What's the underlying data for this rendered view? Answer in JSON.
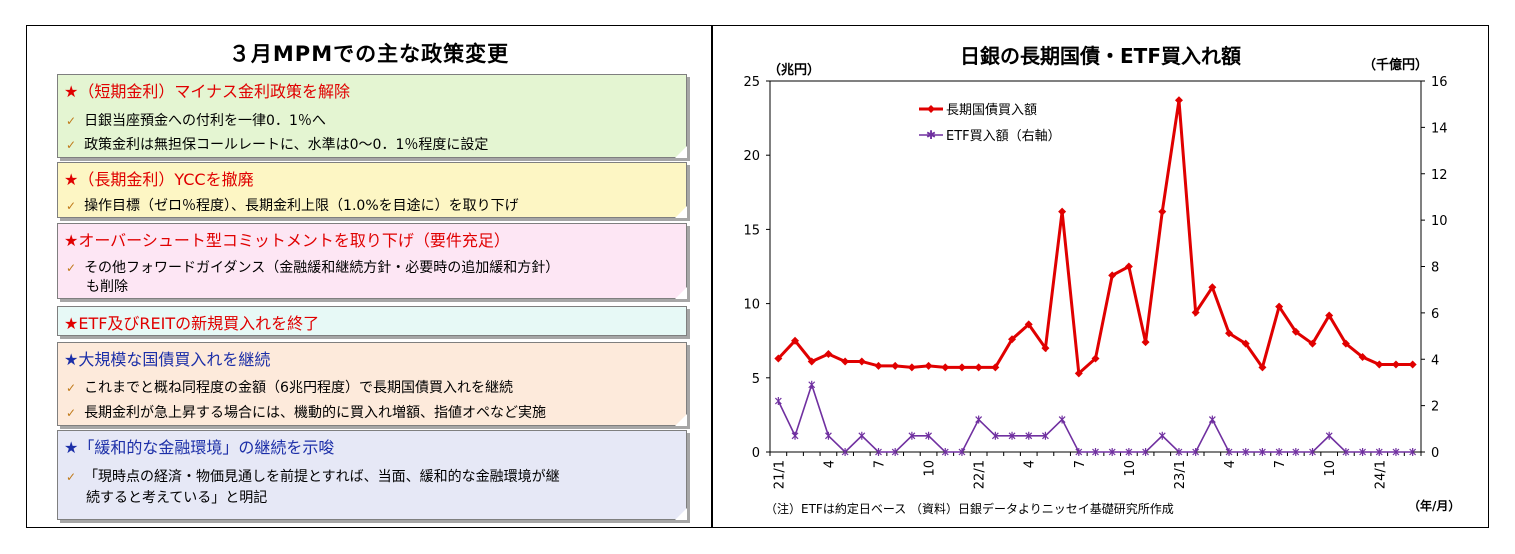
{
  "left": {
    "title": "３月MPMでの主な政策変更",
    "boxes": [
      {
        "heading": "★（短期金利）マイナス金利政策を解除",
        "items": [
          "日銀当座預金への付利を一律0．1％へ",
          "政策金利は無担保コールレートに、水準は0～0．1％程度に設定"
        ]
      },
      {
        "heading": "★（長期金利）YCCを撤廃",
        "items": [
          "操作目標（ゼロ％程度）、長期金利上限（1.0%を目途に）を取り下げ"
        ]
      },
      {
        "heading": "★オーバーシュート型コミットメントを取り下げ（要件充足）",
        "items": [
          "その他フォワードガイダンス（金融緩和継続方針・必要時の追加緩和方針）"
        ],
        "item_continuation": "も削除"
      },
      {
        "heading": "★ETF及びREITの新規買入れを終了",
        "items": []
      },
      {
        "heading": "★大規模な国債買入れを継続",
        "items": [
          "これまでと概ね同程度の金額（6兆円程度）で長期国債買入れを継続",
          "長期金利が急上昇する場合には、機動的に買入れ増額、指値オペなど実施"
        ]
      },
      {
        "heading": "★「緩和的な金融環境」の継続を示唆",
        "items": [
          "「現時点の経済・物価見通しを前提とすれば、当面、緩和的な金融環境が継"
        ],
        "item_continuation": "続すると考えている」と明記"
      }
    ],
    "colors": {
      "box_fills": [
        "#e4f5d2",
        "#fdf6c4",
        "#fde6f4",
        "#e7f9f6",
        "#fdeadb",
        "#e6e8f6"
      ],
      "red": "#e00000",
      "blue": "#1c2fa8"
    }
  },
  "chart_data": {
    "type": "line",
    "title": "日銀の長期国債・ETF買入れ額",
    "left_axis_label": "（兆円）",
    "right_axis_label": "（千億円）",
    "x_axis_unit": "（年/月）",
    "note": "（注）ETFは約定日ベース （資料）日銀データよりニッセイ基礎研究所作成",
    "left_ylim": [
      0,
      25
    ],
    "left_yticks": [
      0,
      5,
      10,
      15,
      20,
      25
    ],
    "right_ylim": [
      0,
      16
    ],
    "right_yticks": [
      0,
      2,
      4,
      6,
      8,
      10,
      12,
      14,
      16
    ],
    "x_tick_labels": [
      {
        "index": 0,
        "label": "21/1"
      },
      {
        "index": 3,
        "label": "4"
      },
      {
        "index": 6,
        "label": "7"
      },
      {
        "index": 9,
        "label": "10"
      },
      {
        "index": 12,
        "label": "22/1"
      },
      {
        "index": 15,
        "label": "4"
      },
      {
        "index": 18,
        "label": "7"
      },
      {
        "index": 21,
        "label": "10"
      },
      {
        "index": 24,
        "label": "23/1"
      },
      {
        "index": 27,
        "label": "4"
      },
      {
        "index": 30,
        "label": "7"
      },
      {
        "index": 33,
        "label": "10"
      },
      {
        "index": 36,
        "label": "24/1"
      }
    ],
    "legend_position": "top-left",
    "series": [
      {
        "name": "長期国債買入額",
        "axis": "left",
        "color": "#e00000",
        "marker": "diamond",
        "values": [
          6.3,
          7.5,
          6.1,
          6.6,
          6.1,
          6.1,
          5.8,
          5.8,
          5.7,
          5.8,
          5.7,
          5.7,
          5.7,
          5.7,
          7.6,
          8.6,
          7.0,
          16.2,
          5.3,
          6.3,
          11.9,
          12.5,
          7.4,
          16.2,
          23.7,
          9.4,
          11.1,
          8.0,
          7.3,
          5.7,
          9.8,
          8.1,
          7.3,
          9.2,
          7.3,
          6.4,
          5.9,
          5.9,
          5.9
        ]
      },
      {
        "name": "ETF買入額（右軸）",
        "axis": "right",
        "color": "#7030a0",
        "marker": "star",
        "values": [
          2.2,
          0.7,
          2.9,
          0.7,
          0,
          0.7,
          0,
          0,
          0.7,
          0.7,
          0,
          0,
          1.4,
          0.7,
          0.7,
          0.7,
          0.7,
          1.4,
          0,
          0,
          0,
          0,
          0,
          0.7,
          0,
          0,
          1.4,
          0,
          0,
          0,
          0,
          0,
          0,
          0.7,
          0,
          0,
          0,
          0,
          0
        ]
      }
    ]
  }
}
